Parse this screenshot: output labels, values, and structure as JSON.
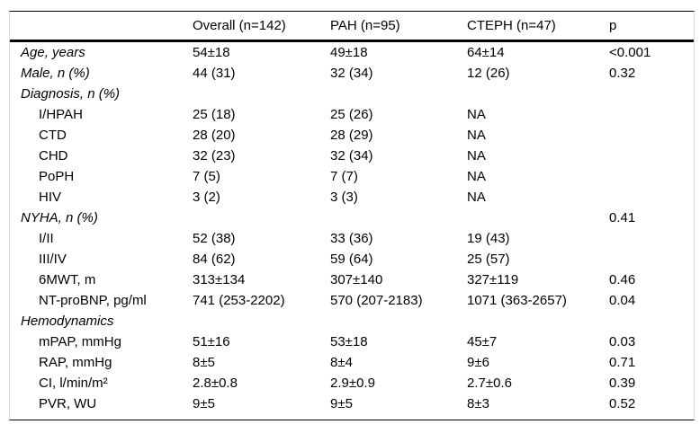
{
  "table": {
    "columns": [
      "",
      "Overall (n=142)",
      "PAH (n=95)",
      "CTEPH (n=47)",
      "p"
    ],
    "rows": [
      {
        "label": "Age, years",
        "style": "main",
        "values": [
          "54±18",
          "49±18",
          "64±14"
        ],
        "p": "<0.001"
      },
      {
        "label": "Male, n (%)",
        "style": "main",
        "values": [
          "44 (31)",
          "32 (34)",
          "12 (26)"
        ],
        "p": "0.32"
      },
      {
        "label": "Diagnosis, n (%)",
        "style": "main",
        "values": [
          "",
          "",
          ""
        ],
        "p": ""
      },
      {
        "label": "I/HPAH",
        "style": "sub",
        "values": [
          "25 (18)",
          "25 (26)",
          "NA"
        ],
        "p": ""
      },
      {
        "label": "CTD",
        "style": "sub",
        "values": [
          "28 (20)",
          "28 (29)",
          "NA"
        ],
        "p": ""
      },
      {
        "label": "CHD",
        "style": "sub",
        "values": [
          "32 (23)",
          "32 (34)",
          "NA"
        ],
        "p": ""
      },
      {
        "label": "PoPH",
        "style": "sub",
        "values": [
          "7 (5)",
          "7 (7)",
          "NA"
        ],
        "p": ""
      },
      {
        "label": "HIV",
        "style": "sub",
        "values": [
          "3 (2)",
          "3 (3)",
          "NA"
        ],
        "p": ""
      },
      {
        "label": "NYHA, n (%)",
        "style": "main",
        "values": [
          "",
          "",
          ""
        ],
        "p": "0.41"
      },
      {
        "label": "I/II",
        "style": "sub",
        "values": [
          "52 (38)",
          "33 (36)",
          "19 (43)"
        ],
        "p": ""
      },
      {
        "label": "III/IV",
        "style": "sub",
        "values": [
          "84 (62)",
          "59 (64)",
          "25 (57)"
        ],
        "p": ""
      },
      {
        "label": "6MWT, m",
        "style": "sub",
        "values": [
          "313±134",
          "307±140",
          "327±119"
        ],
        "p": "0.46"
      },
      {
        "label": "NT-proBNP, pg/ml",
        "style": "sub",
        "values": [
          "741 (253-2202)",
          "570 (207-2183)",
          "1071 (363-2657)"
        ],
        "p": "0.04"
      },
      {
        "label": "Hemodynamics",
        "style": "main",
        "values": [
          "",
          "",
          ""
        ],
        "p": ""
      },
      {
        "label": "mPAP, mmHg",
        "style": "sub",
        "values": [
          "51±16",
          "53±18",
          "45±7"
        ],
        "p": "0.03"
      },
      {
        "label": "RAP, mmHg",
        "style": "sub",
        "values": [
          "8±5",
          "8±4",
          "9±6"
        ],
        "p": "0.71"
      },
      {
        "label": "CI, l/min/m²",
        "style": "sub",
        "values": [
          "2.8±0.8",
          "2.9±0.9",
          "2.7±0.6"
        ],
        "p": "0.39"
      },
      {
        "label": "PVR, WU",
        "style": "sub",
        "values": [
          "9±5",
          "9±5",
          "8±3"
        ],
        "p": "0.52"
      }
    ]
  }
}
